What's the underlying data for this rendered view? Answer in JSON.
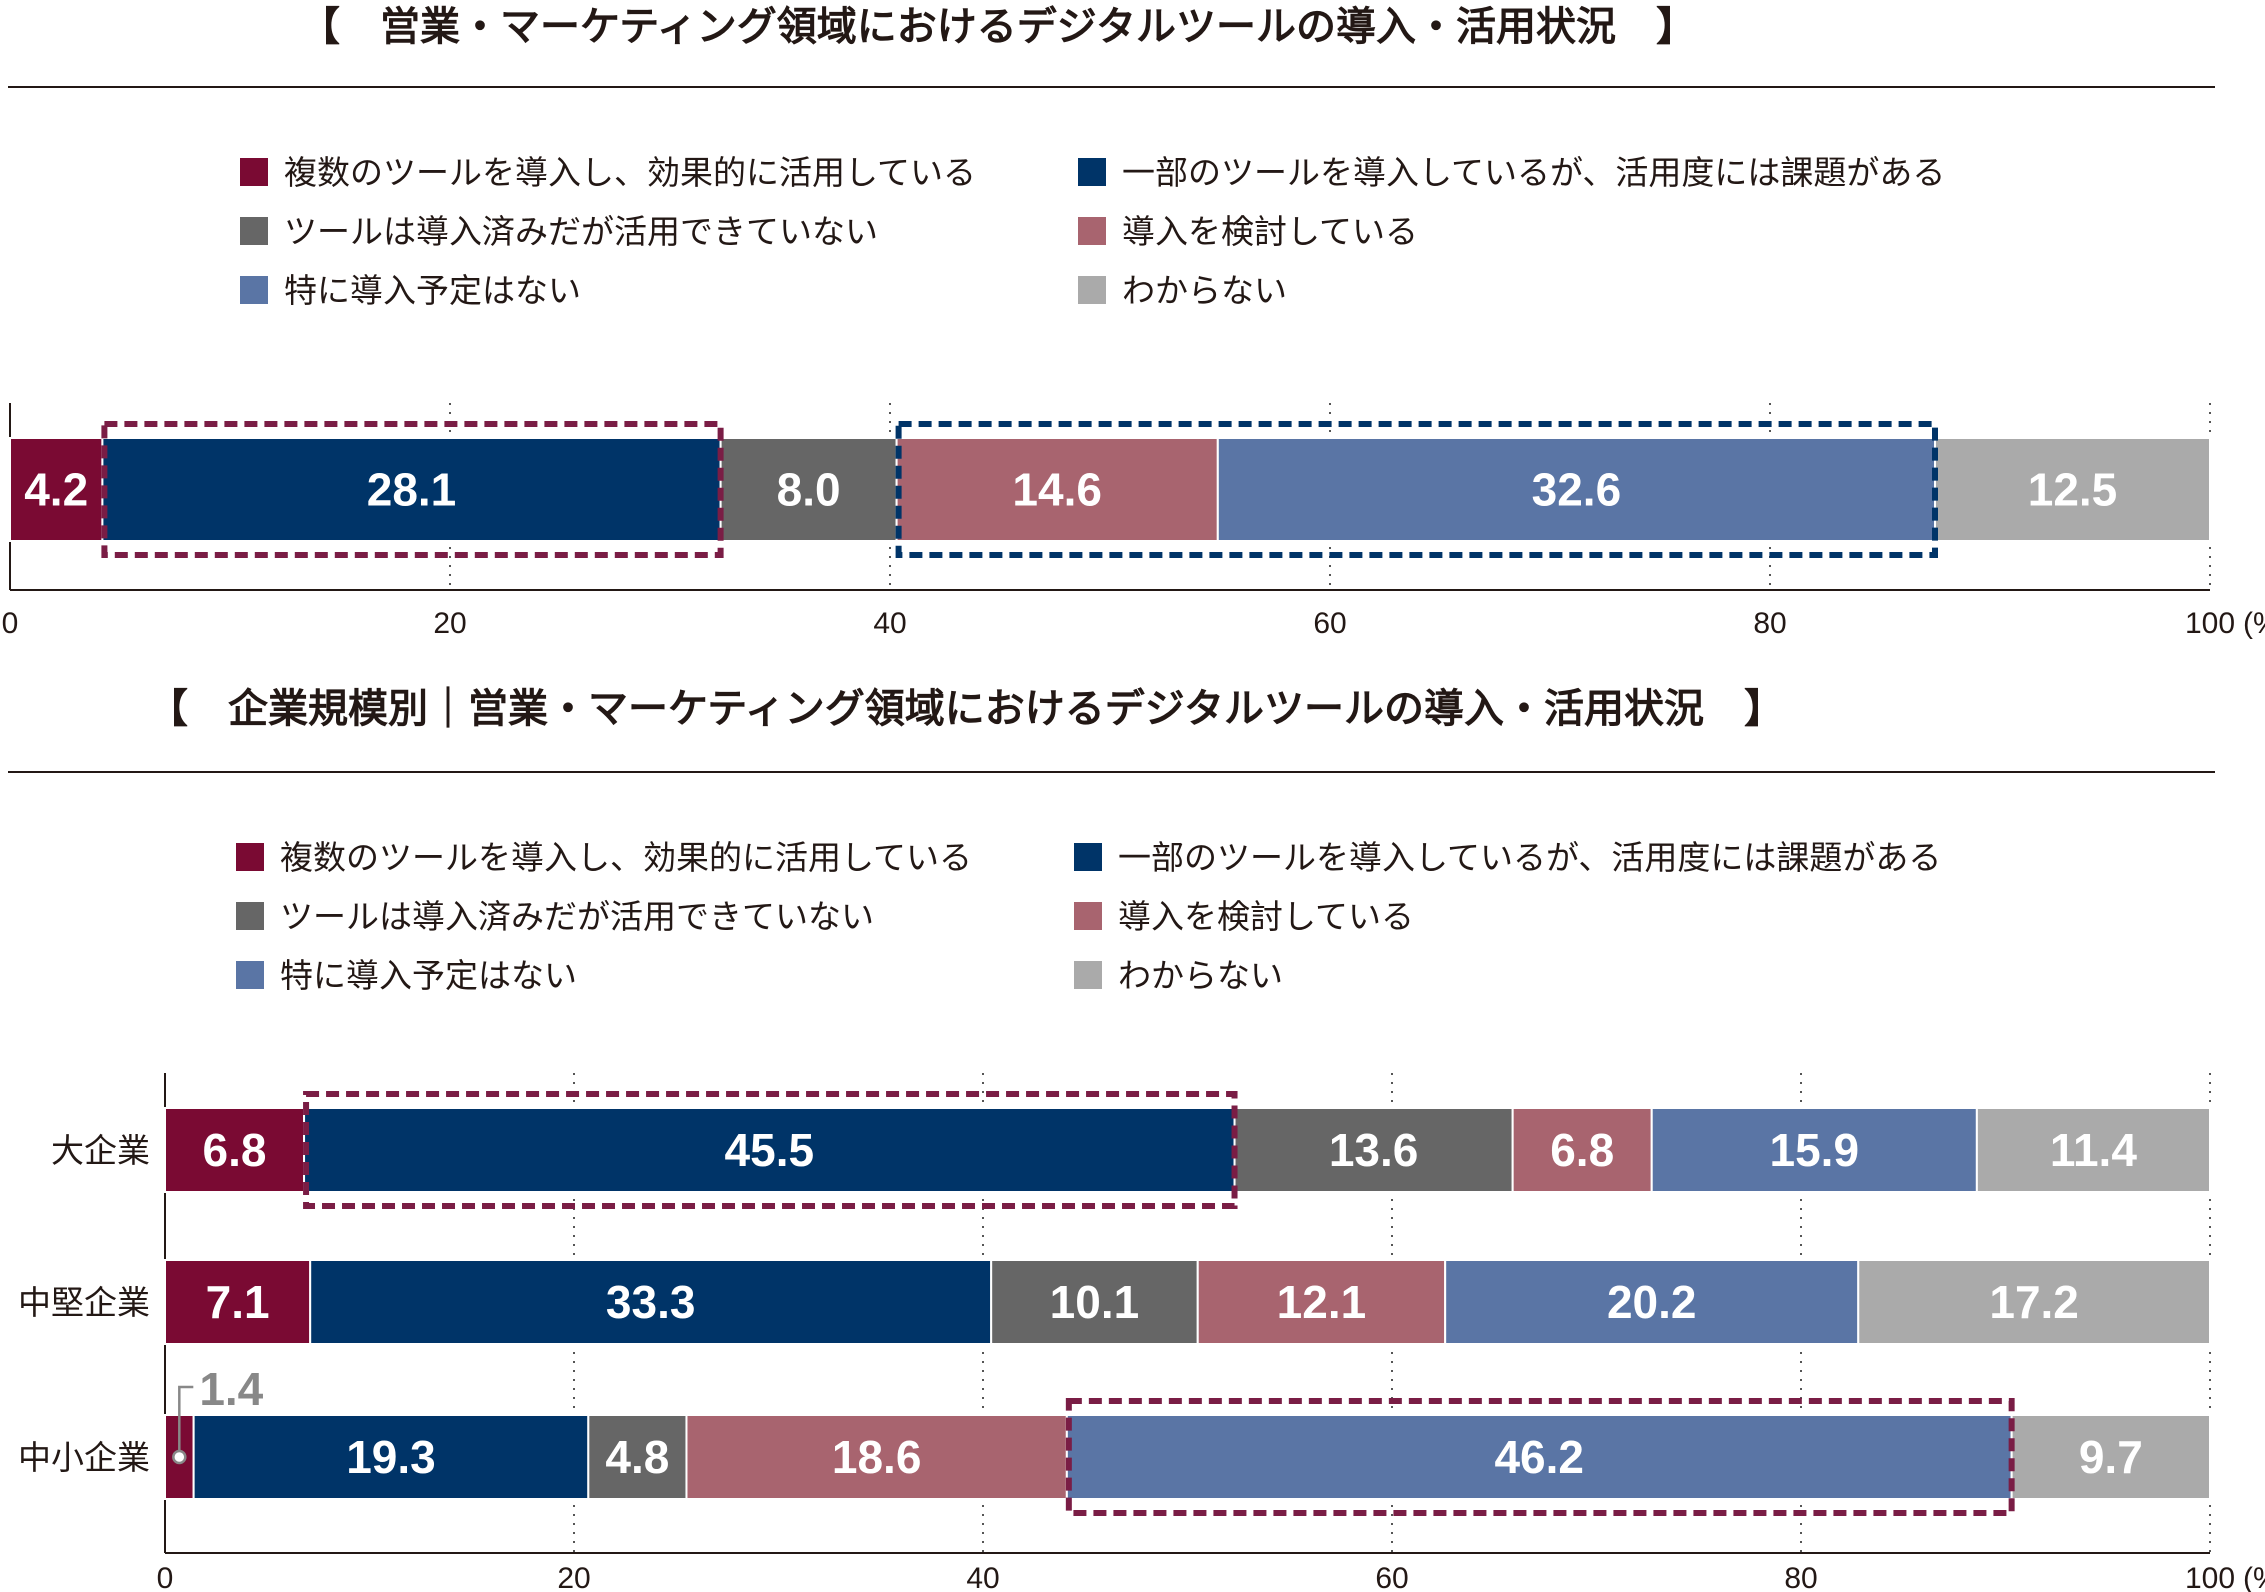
{
  "colors": {
    "effective": "#7a0a33",
    "partial": "#003468",
    "not_used": "#666666",
    "considering": "#a8646f",
    "no_plan": "#5a75a5",
    "unknown": "#aaaaaa",
    "highlight_maroon": "#7a1d45",
    "highlight_navy": "#003468"
  },
  "legend": [
    {
      "label": "複数のツールを導入し、効果的に活用している",
      "color": "#7a0a33"
    },
    {
      "label": "一部のツールを導入しているが、活用度には課題がある",
      "color": "#003468"
    },
    {
      "label": "ツールは導入済みだが活用できていない",
      "color": "#666666"
    },
    {
      "label": "導入を検討している",
      "color": "#a8646f"
    },
    {
      "label": "特に導入予定はない",
      "color": "#5a75a5"
    },
    {
      "label": "わからない",
      "color": "#aaaaaa"
    }
  ],
  "chart_data": [
    {
      "type": "bar",
      "orientation": "horizontal-stacked",
      "title": "【　営業・マーケティング領域におけるデジタルツールの導入・活用状況　】",
      "categories": [
        ""
      ],
      "series": [
        {
          "name": "複数のツールを導入し、効果的に活用している",
          "values": [
            4.2
          ]
        },
        {
          "name": "一部のツールを導入しているが、活用度には課題がある",
          "values": [
            28.1
          ]
        },
        {
          "name": "ツールは導入済みだが活用できていない",
          "values": [
            8.0
          ]
        },
        {
          "name": "導入を検討している",
          "values": [
            14.6
          ]
        },
        {
          "name": "特に導入予定はない",
          "values": [
            32.6
          ]
        },
        {
          "name": "わからない",
          "values": [
            12.5
          ]
        }
      ],
      "xlim": [
        0,
        100
      ],
      "xticks": [
        "0",
        "20",
        "40",
        "60",
        "80",
        "100"
      ],
      "unit": "(%)",
      "grid": true,
      "legend": "top",
      "highlights": [
        {
          "row": 0,
          "series": [
            1
          ],
          "color": "maroon"
        },
        {
          "row": 0,
          "series": [
            3,
            4
          ],
          "color": "navy"
        }
      ]
    },
    {
      "type": "bar",
      "orientation": "horizontal-stacked",
      "title": "【　企業規模別｜営業・マーケティング領域におけるデジタルツールの導入・活用状況　】",
      "categories": [
        "大企業",
        "中堅企業",
        "中小企業"
      ],
      "series": [
        {
          "name": "複数のツールを導入し、効果的に活用している",
          "values": [
            6.8,
            7.1,
            1.4
          ]
        },
        {
          "name": "一部のツールを導入しているが、活用度には課題がある",
          "values": [
            45.5,
            33.3,
            19.3
          ]
        },
        {
          "name": "ツールは導入済みだが活用できていない",
          "values": [
            13.6,
            10.1,
            4.8
          ]
        },
        {
          "name": "導入を検討している",
          "values": [
            6.8,
            12.1,
            18.6
          ]
        },
        {
          "name": "特に導入予定はない",
          "values": [
            15.9,
            20.2,
            46.2
          ]
        },
        {
          "name": "わからない",
          "values": [
            11.4,
            17.2,
            9.7
          ]
        }
      ],
      "xlim": [
        0,
        100
      ],
      "xticks": [
        "0",
        "20",
        "40",
        "60",
        "80",
        "100"
      ],
      "unit": "(%)",
      "grid": true,
      "legend": "top",
      "highlights": [
        {
          "row": 0,
          "series": [
            1
          ],
          "color": "maroon"
        },
        {
          "row": 2,
          "series": [
            4
          ],
          "color": "maroon"
        }
      ],
      "callout": {
        "row": 2,
        "series": 0,
        "label": "1.4"
      }
    }
  ]
}
